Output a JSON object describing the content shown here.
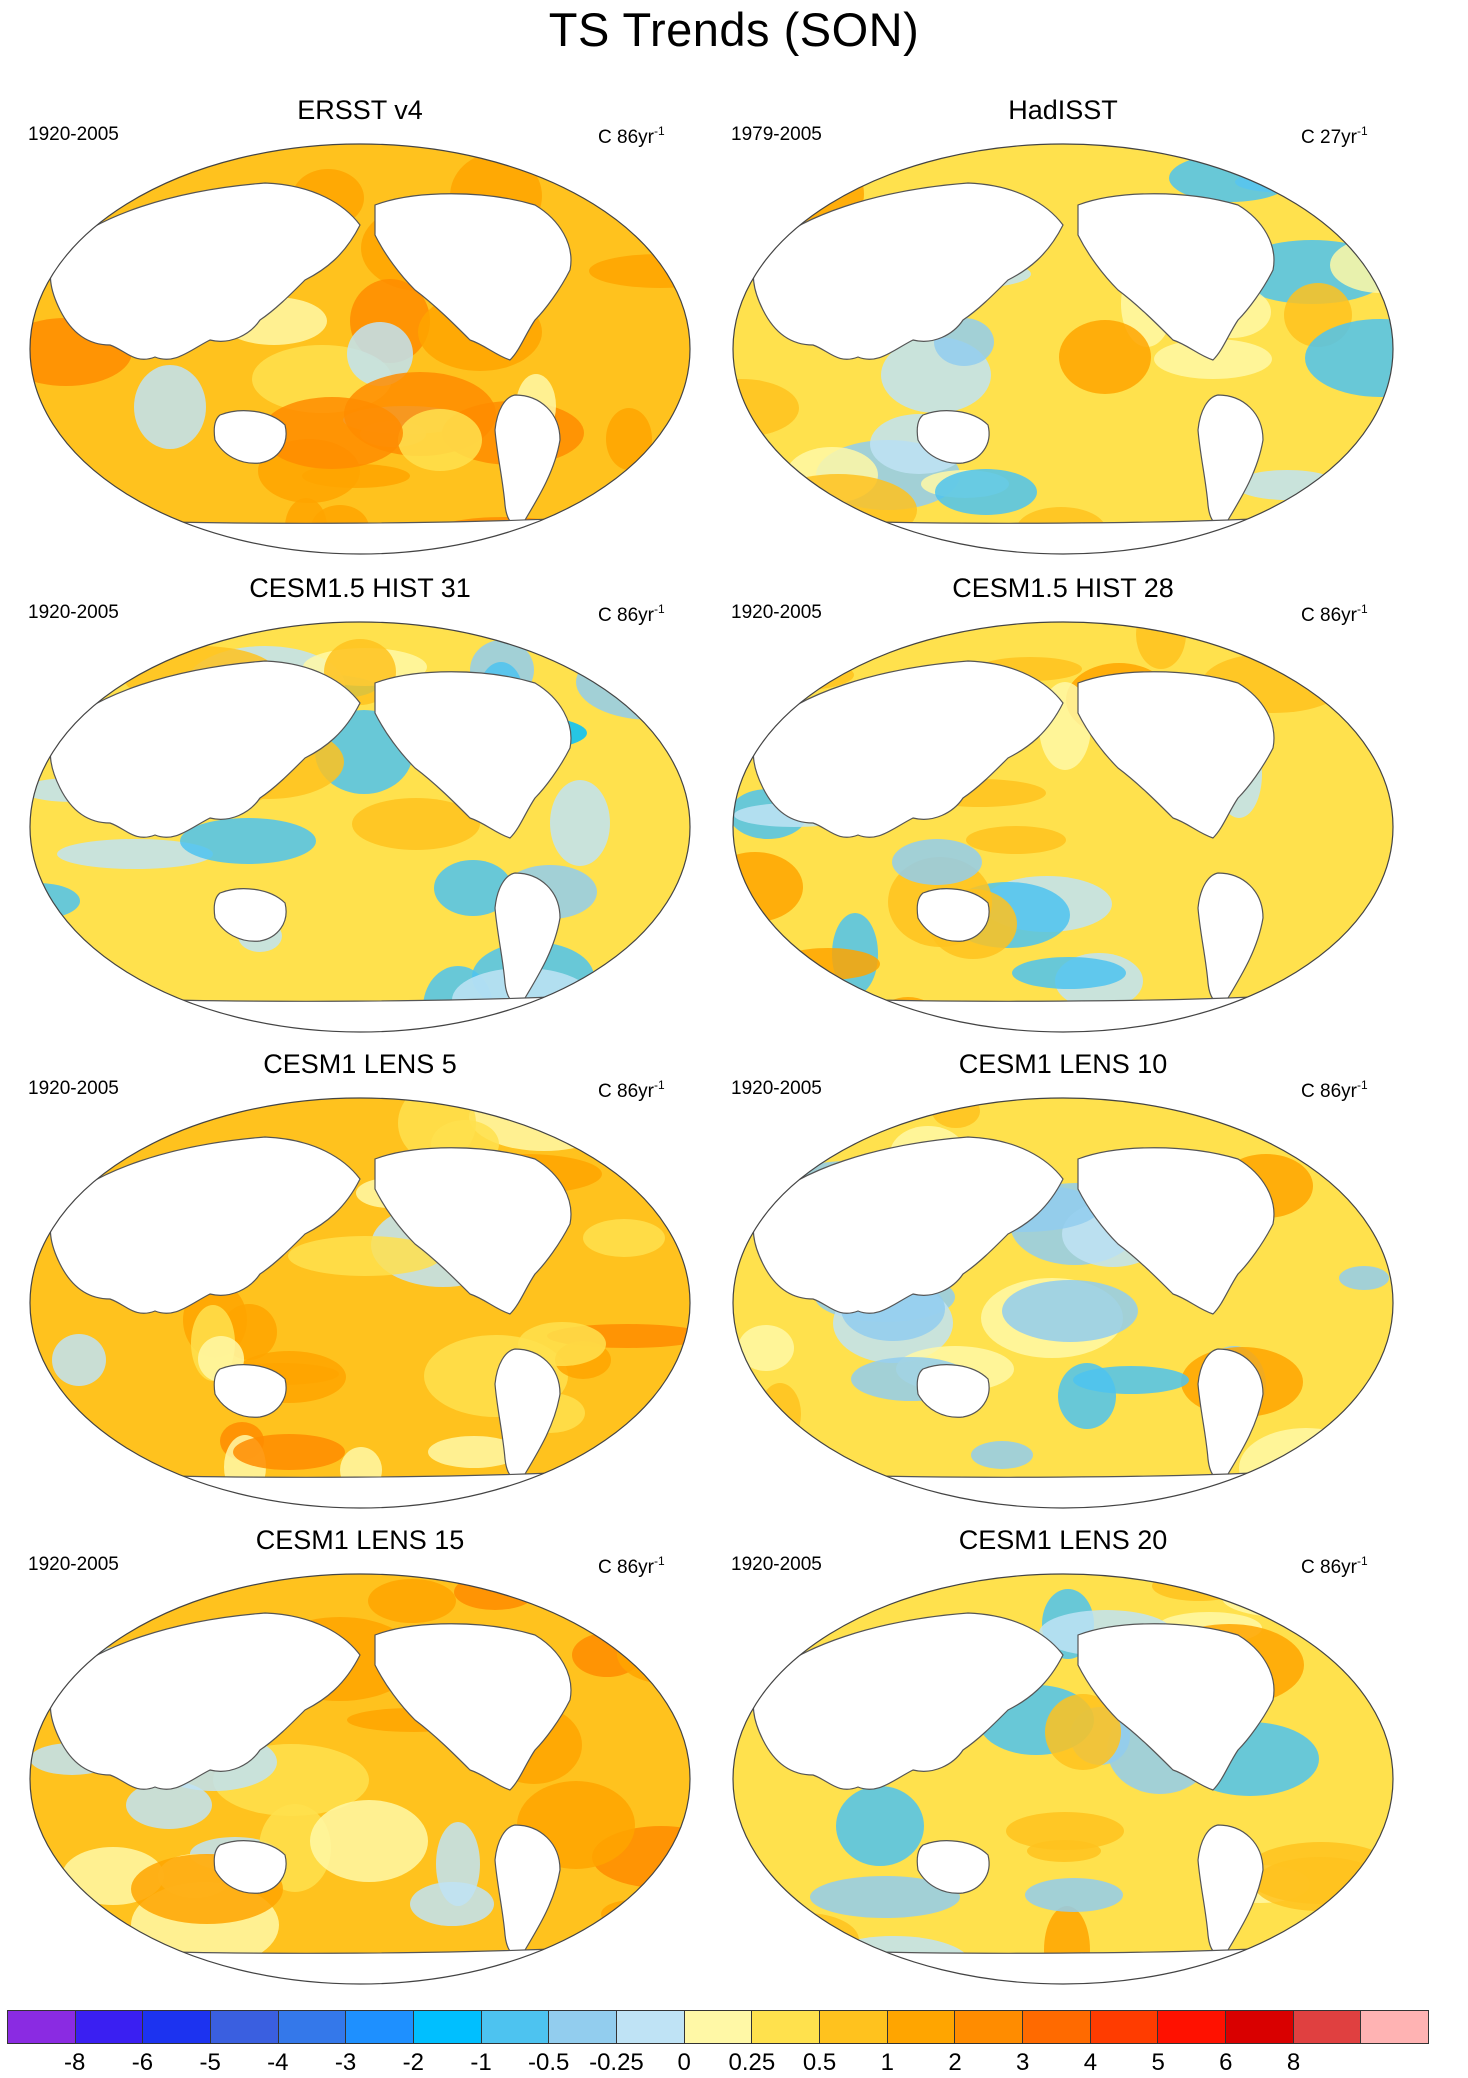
{
  "title": "TS Trends (SON)",
  "panels": [
    {
      "title": "ERSST v4",
      "period": "1920-2005",
      "units": "C 86yr",
      "units_exp": "-1",
      "dominant": "warm"
    },
    {
      "title": "HadISST",
      "period": "1979-2005",
      "units": "C 27yr",
      "units_exp": "-1",
      "dominant": "mixed"
    },
    {
      "title": "CESM1.5 HIST 31",
      "period": "1920-2005",
      "units": "C 86yr",
      "units_exp": "-1",
      "dominant": "mixed-cool-pacific"
    },
    {
      "title": "CESM1.5 HIST 28",
      "period": "1920-2005",
      "units": "C 86yr",
      "units_exp": "-1",
      "dominant": "mixed"
    },
    {
      "title": "CESM1 LENS 5",
      "period": "1920-2005",
      "units": "C 86yr",
      "units_exp": "-1",
      "dominant": "warm"
    },
    {
      "title": "CESM1 LENS 10",
      "period": "1920-2005",
      "units": "C 86yr",
      "units_exp": "-1",
      "dominant": "mixed"
    },
    {
      "title": "CESM1 LENS 15",
      "period": "1920-2005",
      "units": "C 86yr",
      "units_exp": "-1",
      "dominant": "warm"
    },
    {
      "title": "CESM1 LENS 20",
      "period": "1920-2005",
      "units": "C 86yr",
      "units_exp": "-1",
      "dominant": "mixed"
    }
  ],
  "colorbar": {
    "colors": [
      "#8a2be2",
      "#3a1ff2",
      "#1c33f0",
      "#3a5fe0",
      "#3478ea",
      "#1e90ff",
      "#00bfff",
      "#4dc3f0",
      "#92cdee",
      "#bfe3f5",
      "#fff8a6",
      "#ffe14d",
      "#ffc21e",
      "#ffa500",
      "#ff8c00",
      "#ff6a00",
      "#ff3c00",
      "#ff1100",
      "#d90000",
      "#e04040",
      "#ffb3b3"
    ],
    "labels": [
      "-8",
      "-6",
      "-5",
      "-4",
      "-3",
      "-2",
      "-1",
      "-0.5",
      "-0.25",
      "0",
      "0.25",
      "0.5",
      "1",
      "2",
      "3",
      "4",
      "5",
      "6",
      "8"
    ]
  }
}
